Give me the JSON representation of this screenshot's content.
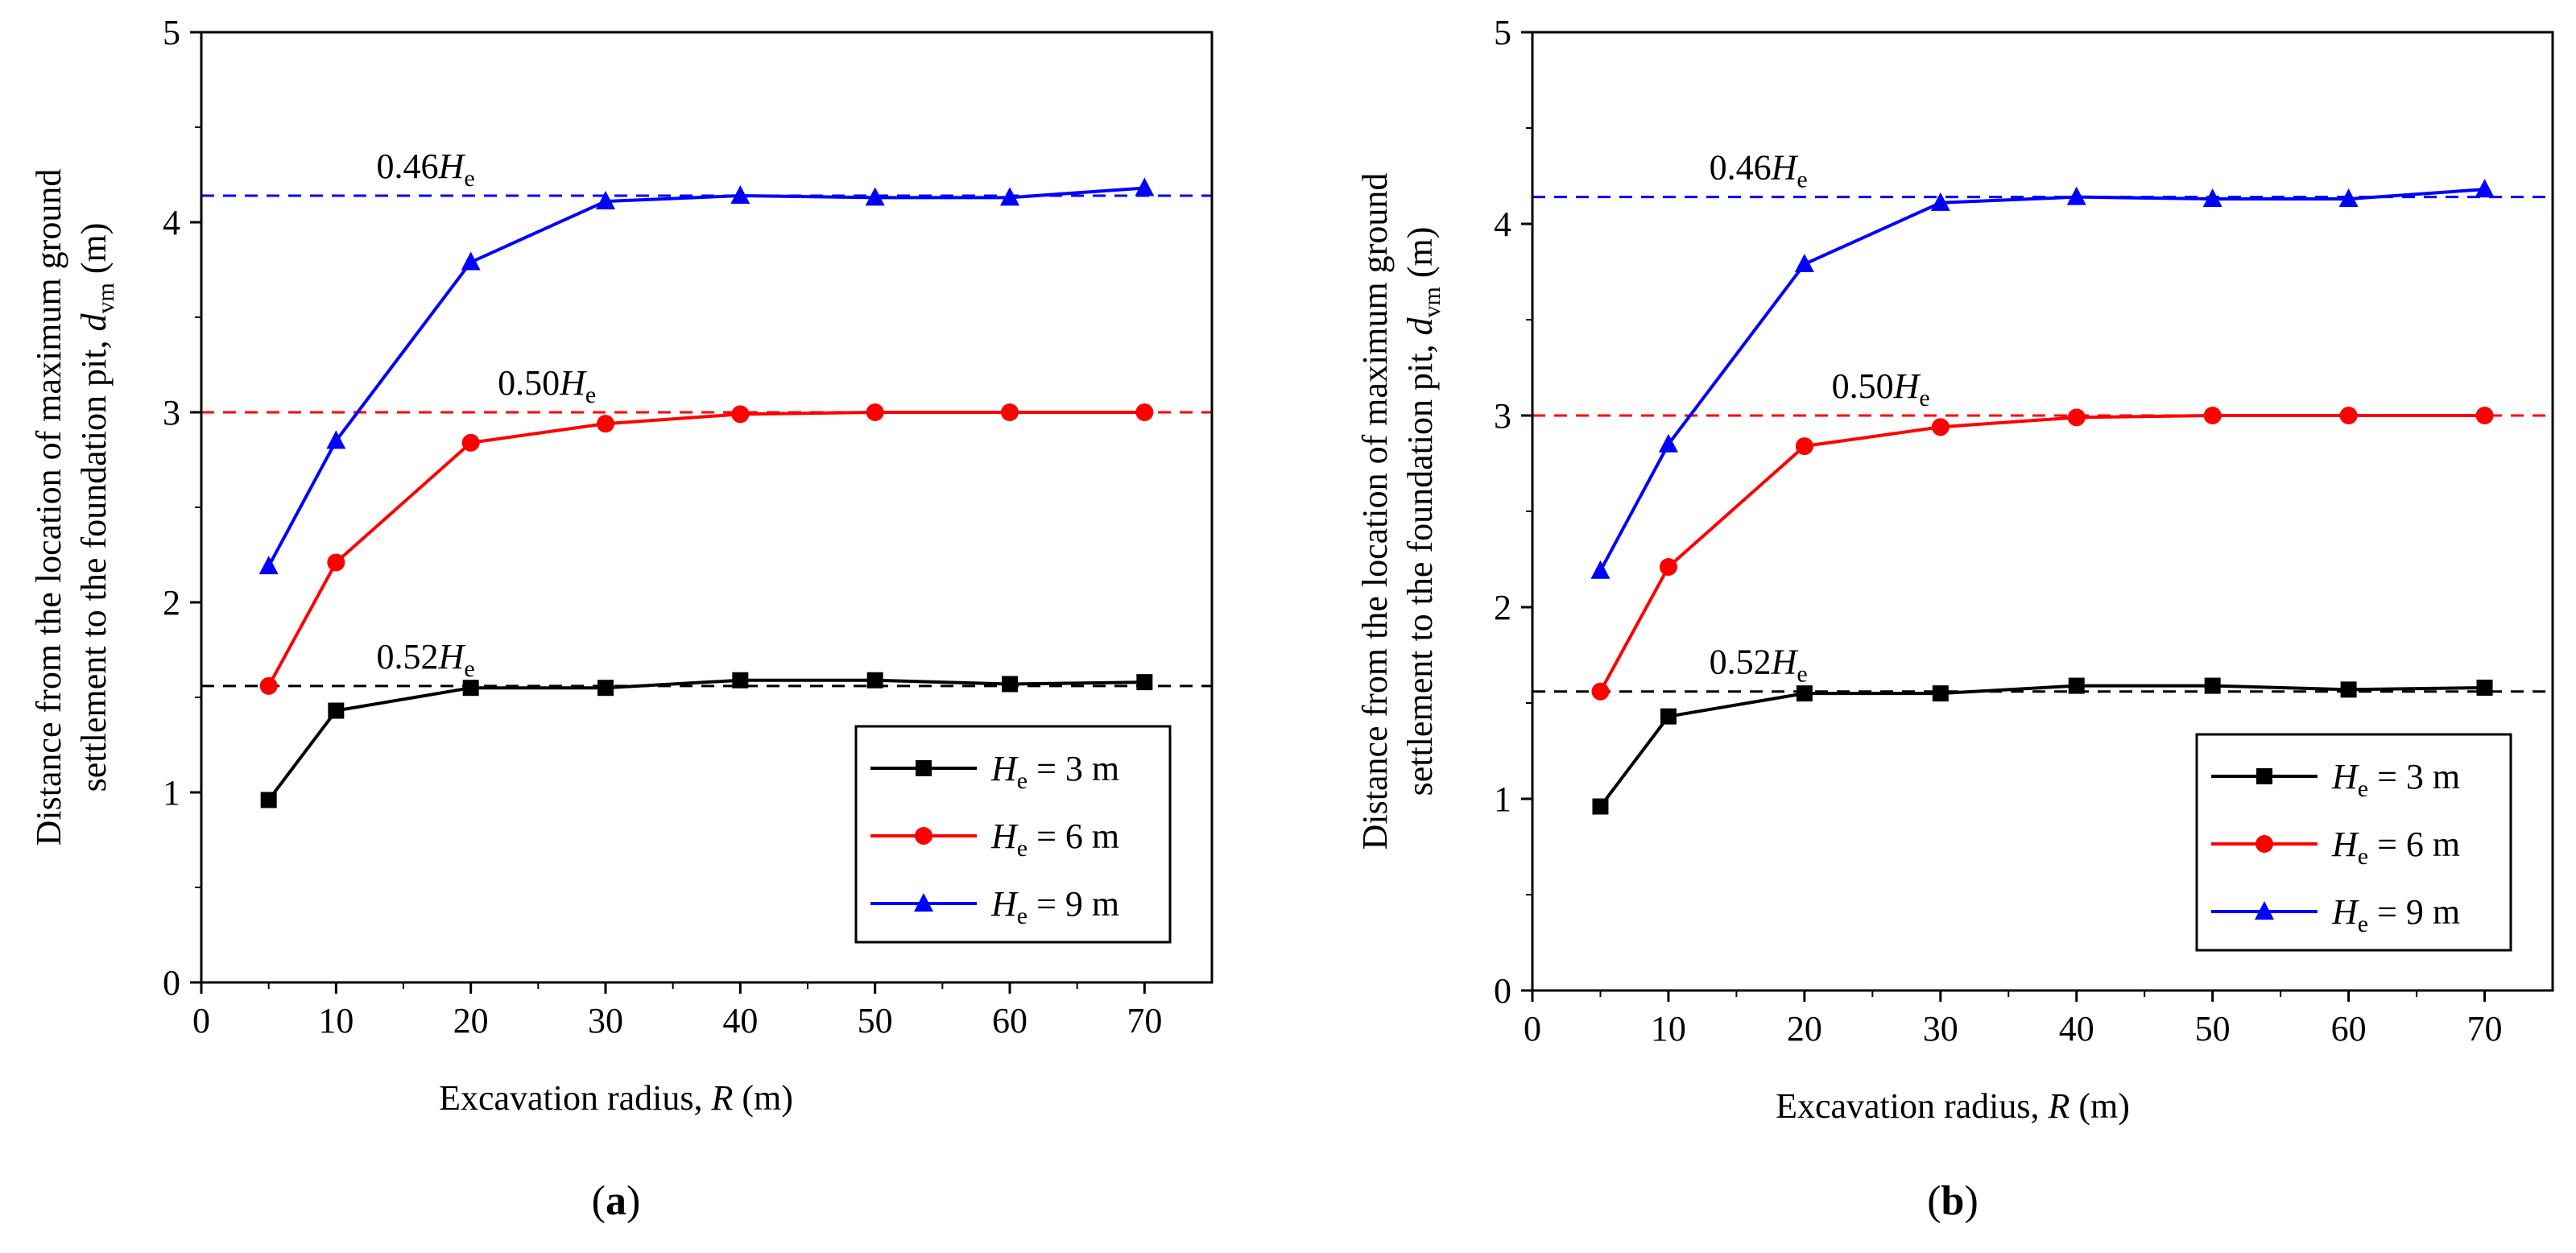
{
  "chart_data": [
    {
      "type": "line",
      "panel_label": "a",
      "x": [
        5,
        10,
        20,
        30,
        40,
        50,
        60,
        70
      ],
      "xlabel": {
        "text": "Excavation radius, ",
        "var": "R",
        "unit": " (m)"
      },
      "ylabel": {
        "line1": "Distance from the location of maximum ground",
        "line2": "settlement to the foundation pit, ",
        "var": "d",
        "sub": "vm",
        "unit": " (m)"
      },
      "xlim": [
        0,
        75
      ],
      "ylim": [
        0,
        5
      ],
      "xticks": [
        0,
        10,
        20,
        30,
        40,
        50,
        60,
        70
      ],
      "yticks": [
        0,
        1,
        2,
        3,
        4,
        5
      ],
      "series": [
        {
          "name": "He = 3 m",
          "legend": {
            "var": "H",
            "sub": "e",
            "rest": " = 3 m"
          },
          "color": "#000000",
          "marker": "square",
          "values": [
            0.96,
            1.43,
            1.55,
            1.55,
            1.59,
            1.59,
            1.57,
            1.58
          ]
        },
        {
          "name": "He = 6 m",
          "legend": {
            "var": "H",
            "sub": "e",
            "rest": " = 6 m"
          },
          "color": "#ff0000",
          "marker": "circle",
          "values": [
            1.56,
            2.21,
            2.84,
            2.94,
            2.99,
            3.0,
            3.0,
            3.0
          ]
        },
        {
          "name": "He = 9 m",
          "legend": {
            "var": "H",
            "sub": "e",
            "rest": " = 9 m"
          },
          "color": "#0000ff",
          "marker": "triangle",
          "values": [
            2.19,
            2.85,
            3.79,
            4.11,
            4.14,
            4.13,
            4.13,
            4.18
          ]
        }
      ],
      "reference_lines": [
        {
          "value": 4.14,
          "color": "#0000ff",
          "coef": "0.46",
          "var": "H",
          "sub": "e",
          "label_x": 13
        },
        {
          "value": 3.0,
          "color": "#ff0000",
          "coef": "0.50",
          "var": "H",
          "sub": "e",
          "label_x": 22
        },
        {
          "value": 1.56,
          "color": "#000000",
          "coef": "0.52",
          "var": "H",
          "sub": "e",
          "label_x": 13
        }
      ],
      "legend_position": "lower-right"
    },
    {
      "type": "line",
      "panel_label": "b",
      "x": [
        5,
        10,
        20,
        30,
        40,
        50,
        60,
        70
      ],
      "xlabel": {
        "text": "Excavation radius, ",
        "var": "R",
        "unit": " (m)"
      },
      "ylabel": {
        "line1": "Distance from the location of maximum ground",
        "line2": "settlement to the foundation pit, ",
        "var": "d",
        "sub": "vm",
        "unit": " (m)"
      },
      "xlim": [
        0,
        75
      ],
      "ylim": [
        0,
        5
      ],
      "xticks": [
        0,
        10,
        20,
        30,
        40,
        50,
        60,
        70
      ],
      "yticks": [
        0,
        1,
        2,
        3,
        4,
        5
      ],
      "series": [
        {
          "name": "He = 3 m",
          "legend": {
            "var": "H",
            "sub": "e",
            "rest": " = 3 m"
          },
          "color": "#000000",
          "marker": "square",
          "values": [
            0.96,
            1.43,
            1.55,
            1.55,
            1.59,
            1.59,
            1.57,
            1.58
          ]
        },
        {
          "name": "He = 6 m",
          "legend": {
            "var": "H",
            "sub": "e",
            "rest": " = 6 m"
          },
          "color": "#ff0000",
          "marker": "circle",
          "values": [
            1.56,
            2.21,
            2.84,
            2.94,
            2.99,
            3.0,
            3.0,
            3.0
          ]
        },
        {
          "name": "He = 9 m",
          "legend": {
            "var": "H",
            "sub": "e",
            "rest": " = 9 m"
          },
          "color": "#0000ff",
          "marker": "triangle",
          "values": [
            2.19,
            2.85,
            3.79,
            4.11,
            4.14,
            4.13,
            4.13,
            4.18
          ]
        }
      ],
      "reference_lines": [
        {
          "value": 4.14,
          "color": "#0000ff",
          "coef": "0.46",
          "var": "H",
          "sub": "e",
          "label_x": 13
        },
        {
          "value": 3.0,
          "color": "#ff0000",
          "coef": "0.50",
          "var": "H",
          "sub": "e",
          "label_x": 22
        },
        {
          "value": 1.56,
          "color": "#000000",
          "coef": "0.52",
          "var": "H",
          "sub": "e",
          "label_x": 13
        }
      ],
      "legend_position": "lower-right"
    }
  ]
}
